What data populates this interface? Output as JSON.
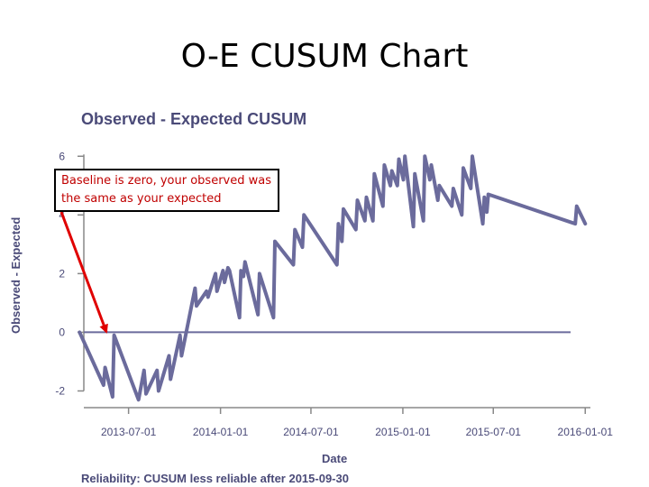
{
  "slide": {
    "title": "O-E CUSUM Chart",
    "callout_text": "Baseline is zero, your observed was the same as your expected",
    "callout_text_color": "#c00000",
    "arrow_color": "#e00000"
  },
  "chart_data": {
    "type": "line",
    "title": "Observed - Expected CUSUM",
    "xlabel": "Date",
    "ylabel": "Observed - Expected",
    "footnote": "Reliability: CUSUM less reliable after 2015-09-30",
    "x_ticks": [
      "2013-07-01",
      "2014-01-01",
      "2014-07-01",
      "2015-01-01",
      "2015-07-01",
      "2016-01-01"
    ],
    "y_ticks": [
      -2,
      0,
      2,
      4,
      6
    ],
    "ylim": [
      -2.2,
      6.1
    ],
    "xlim": [
      "2013-03-10",
      "2016-01-01"
    ],
    "baseline": 0,
    "line_color": "#6b6b9c",
    "axis_color": "#888888",
    "series": [
      {
        "x": [
          "2013-03-25",
          "2013-05-12",
          "2013-05-15",
          "2013-05-30",
          "2013-06-02",
          "2013-07-21",
          "2013-08-01",
          "2013-08-05",
          "2013-08-27",
          "2013-08-30",
          "2013-09-20",
          "2013-09-23",
          "2013-10-12",
          "2013-10-15",
          "2013-11-11",
          "2013-11-14",
          "2013-12-04",
          "2013-12-07",
          "2013-12-22",
          "2013-12-25",
          "2014-01-06",
          "2014-01-09",
          "2014-01-16",
          "2014-01-19",
          "2014-02-08",
          "2014-02-11",
          "2014-02-16",
          "2014-02-19",
          "2014-03-17",
          "2014-03-20",
          "2014-04-17",
          "2014-04-20",
          "2014-05-27",
          "2014-05-30",
          "2014-06-14",
          "2014-06-17",
          "2014-08-22",
          "2014-08-25",
          "2014-09-01",
          "2014-09-04",
          "2014-09-29",
          "2014-10-02",
          "2014-10-17",
          "2014-10-20",
          "2014-11-02",
          "2014-11-05",
          "2014-11-22",
          "2014-11-25",
          "2014-12-07",
          "2014-12-10",
          "2014-12-21",
          "2014-12-24",
          "2015-01-02",
          "2015-01-05",
          "2015-01-22",
          "2015-01-25",
          "2015-02-11",
          "2015-02-14",
          "2015-02-24",
          "2015-02-27",
          "2015-03-12",
          "2015-03-15",
          "2015-04-09",
          "2015-04-12",
          "2015-04-29",
          "2015-05-02",
          "2015-05-17",
          "2015-05-20",
          "2015-06-10",
          "2015-06-13",
          "2015-06-18",
          "2015-06-21",
          "2015-12-12",
          "2015-12-15",
          "2016-01-01"
        ],
        "y": [
          0.0,
          -1.8,
          -1.2,
          -2.2,
          -0.1,
          -2.3,
          -1.3,
          -2.1,
          -1.3,
          -2.0,
          -0.8,
          -1.6,
          -0.1,
          -0.8,
          1.5,
          0.9,
          1.4,
          1.2,
          2.0,
          1.4,
          2.1,
          1.7,
          2.2,
          2.1,
          0.5,
          2.1,
          1.9,
          2.4,
          0.6,
          2.0,
          0.5,
          3.1,
          2.3,
          3.5,
          2.9,
          4.0,
          2.3,
          3.7,
          3.1,
          4.2,
          3.5,
          4.5,
          3.8,
          4.6,
          3.8,
          5.4,
          4.3,
          5.7,
          5.0,
          5.5,
          5.0,
          5.9,
          5.2,
          6.0,
          3.6,
          5.4,
          3.8,
          6.0,
          5.2,
          5.7,
          4.5,
          5.0,
          4.3,
          4.9,
          4.0,
          5.6,
          4.9,
          6.0,
          3.7,
          4.6,
          4.1,
          4.7,
          3.7,
          4.3,
          3.7
        ]
      }
    ]
  }
}
